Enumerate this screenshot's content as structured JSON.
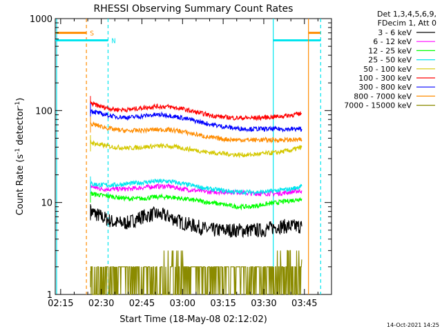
{
  "chart_data": {
    "type": "line",
    "title": "RHESSI Observing Summary Count Rates",
    "xlabel": "Start Time (18-May-08 02:12:02)",
    "ylabel_main": "Count Rate (s",
    "ylabel_sup1": "-1",
    "ylabel_mid": " detector",
    "ylabel_sup2": "-1",
    "ylabel_end": ")",
    "yscale": "log",
    "ylim": [
      1,
      1000
    ],
    "xlim_minutes": [
      -2,
      100
    ],
    "xtick_labels": [
      "02:15",
      "02:30",
      "02:45",
      "03:00",
      "03:15",
      "03:30",
      "03:45"
    ],
    "xtick_minutes": [
      0,
      15,
      30,
      45,
      60,
      75,
      90
    ],
    "ytick_labels": [
      "1",
      "10",
      "100",
      "1000"
    ],
    "ytick_values": [
      1,
      10,
      100,
      1000
    ],
    "legend_header": [
      "Det 1,3,4,5,6,9,",
      "FDecim 1, Att 0"
    ],
    "legend_position": "right",
    "timestamp": "14-Oct-2021 14:25",
    "markers": [
      {
        "label": "S",
        "color": "#ff8c00",
        "style": "dashed",
        "x": 9.5,
        "bar_y": 700,
        "bar_from": -2,
        "bar_to": 9.5
      },
      {
        "label": "N",
        "color": "#00e5ee",
        "style": "dashed",
        "x": 17.5,
        "bar_y": 580,
        "bar_from": -2,
        "bar_to": 17.5
      },
      {
        "label": "",
        "color": "#00e5ee",
        "style": "solid",
        "x": -1.5
      },
      {
        "label": "",
        "color": "#00e5ee",
        "style": "solid",
        "x": 78.5,
        "bar_y": 580,
        "bar_from": 78.5,
        "bar_to": 96
      },
      {
        "label": "",
        "color": "#ff8c00",
        "style": "solid",
        "x": 91.5,
        "bar_y": 700,
        "bar_from": 91.5,
        "bar_to": 96
      },
      {
        "label": "",
        "color": "#00e5ee",
        "style": "dashed",
        "x": 96
      }
    ],
    "series": [
      {
        "name": "3 - 6 keV",
        "color": "#000000",
        "x": [
          11,
          15,
          20,
          25,
          30,
          35,
          40,
          45,
          50,
          55,
          60,
          65,
          70,
          75,
          80,
          85,
          89
        ],
        "values": [
          8,
          7,
          6,
          6,
          7,
          7.5,
          7,
          6,
          5.5,
          5,
          5,
          5,
          5,
          5,
          5.5,
          5.5,
          5.5
        ]
      },
      {
        "name": "6 - 12 keV",
        "color": "#ff00ff",
        "x": [
          11,
          15,
          20,
          25,
          30,
          35,
          40,
          45,
          50,
          55,
          60,
          65,
          70,
          75,
          80,
          85,
          89
        ],
        "values": [
          15,
          14,
          14,
          14,
          14.5,
          15,
          15,
          14,
          13.5,
          13,
          13,
          13,
          12.5,
          12.5,
          12.5,
          13,
          13.5
        ]
      },
      {
        "name": "12 - 25 keV",
        "color": "#00ff00",
        "x": [
          11,
          15,
          20,
          25,
          30,
          35,
          40,
          45,
          50,
          55,
          60,
          65,
          70,
          75,
          80,
          85,
          89
        ],
        "values": [
          12.5,
          12,
          11.5,
          11,
          11,
          11.5,
          11.5,
          11,
          10.5,
          10,
          9.5,
          9,
          9,
          9.5,
          10,
          10.5,
          11
        ]
      },
      {
        "name": "25 - 50 keV",
        "color": "#00e5ee",
        "x": [
          11,
          15,
          20,
          25,
          30,
          35,
          40,
          45,
          50,
          55,
          60,
          65,
          70,
          75,
          80,
          85,
          89
        ],
        "values": [
          16,
          15.5,
          15.5,
          16,
          16.5,
          17,
          17,
          16,
          15,
          14,
          13.5,
          13,
          13,
          13,
          13.5,
          14,
          15
        ]
      },
      {
        "name": "50 - 100 keV",
        "color": "#d4c800",
        "x": [
          11,
          15,
          20,
          25,
          30,
          35,
          40,
          45,
          50,
          55,
          60,
          65,
          70,
          75,
          80,
          85,
          89
        ],
        "values": [
          45,
          42,
          40,
          39,
          40,
          41,
          41,
          39,
          37,
          35,
          34,
          33,
          33,
          34,
          35,
          37,
          40
        ]
      },
      {
        "name": "100 - 300 keV",
        "color": "#ff0000",
        "x": [
          11,
          15,
          20,
          25,
          30,
          35,
          40,
          45,
          50,
          55,
          60,
          65,
          70,
          75,
          80,
          85,
          89
        ],
        "values": [
          120,
          110,
          103,
          102,
          107,
          111,
          110,
          104,
          96,
          89,
          85,
          83,
          83,
          84,
          86,
          89,
          93
        ]
      },
      {
        "name": "300 - 800 keV",
        "color": "#0000ff",
        "x": [
          11,
          15,
          20,
          25,
          30,
          35,
          40,
          45,
          50,
          55,
          60,
          65,
          70,
          75,
          80,
          85,
          89
        ],
        "values": [
          100,
          92,
          86,
          84,
          87,
          90,
          89,
          83,
          77,
          71,
          67,
          64,
          63,
          63,
          63,
          63,
          63
        ]
      },
      {
        "name": "800 - 7000 keV",
        "color": "#ff8c00",
        "x": [
          11,
          15,
          20,
          25,
          30,
          35,
          40,
          45,
          50,
          55,
          60,
          65,
          70,
          75,
          80,
          85,
          89
        ],
        "values": [
          72,
          67,
          62,
          60,
          61,
          62,
          62,
          59,
          55,
          51,
          49,
          48,
          48,
          48,
          48,
          48,
          48
        ]
      },
      {
        "name": "7000 - 15000 keV",
        "color": "#8b8b00",
        "x": [
          11,
          15,
          20,
          25,
          30,
          35,
          40,
          45,
          50,
          55,
          60,
          65,
          70,
          75,
          80,
          85,
          89
        ],
        "values": [
          1.5,
          1.5,
          1.5,
          1.5,
          1.7,
          2.2,
          2.5,
          1.6,
          1.5,
          1.5,
          1.5,
          1.5,
          1.5,
          1.5,
          1.6,
          2.0,
          2.4
        ]
      }
    ]
  }
}
